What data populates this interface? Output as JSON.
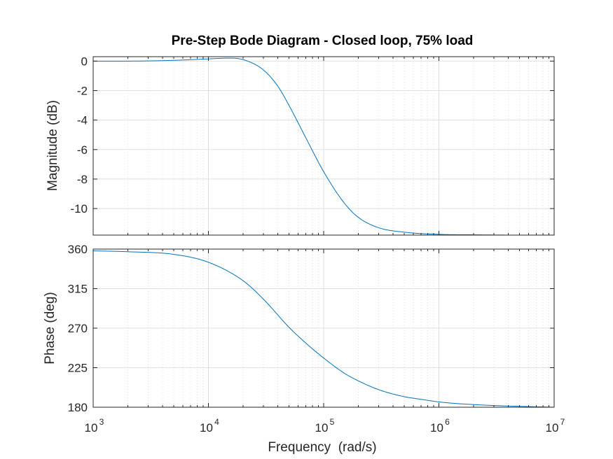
{
  "colors": {
    "line": "#0072BD",
    "grid": "#dfdfdf",
    "axis": "#262626"
  },
  "chart_data": [
    {
      "type": "line",
      "panel": "magnitude",
      "title": "Pre-Step Bode Diagram - Closed loop, 75% load",
      "ylabel": "Magnitude (dB)",
      "xscale": "log",
      "xlim": [
        1000,
        10000000
      ],
      "ylim": [
        -11.8,
        0.3
      ],
      "yticks": [
        0,
        -2,
        -4,
        -6,
        -8,
        -10
      ],
      "ytick_labels": [
        "0",
        "-2",
        "-4",
        "-6",
        "-8",
        "-10"
      ],
      "grid": true,
      "x": [
        1000,
        2000,
        5000,
        10000,
        15000,
        20000,
        30000,
        40000,
        50000,
        70000,
        100000,
        150000,
        200000,
        300000,
        500000,
        1000000,
        2000000,
        5000000,
        10000000
      ],
      "y": [
        0.0,
        0.0,
        0.05,
        0.15,
        0.2,
        0.1,
        -0.6,
        -1.7,
        -3.0,
        -5.2,
        -7.5,
        -9.6,
        -10.6,
        -11.3,
        -11.6,
        -11.75,
        -11.78,
        -11.8,
        -11.8
      ]
    },
    {
      "type": "line",
      "panel": "phase",
      "ylabel": "Phase (deg)",
      "xlabel": "Frequency  (rad/s)",
      "xscale": "log",
      "xlim": [
        1000,
        10000000
      ],
      "ylim": [
        180,
        360
      ],
      "yticks": [
        360,
        315,
        270,
        225,
        180
      ],
      "ytick_labels": [
        "360",
        "315",
        "270",
        "225",
        "180"
      ],
      "xtick_base": [
        "10",
        "10",
        "10",
        "10",
        "10"
      ],
      "xtick_exponents": [
        "3",
        "4",
        "5",
        "6",
        "7"
      ],
      "grid": true,
      "x": [
        1000,
        2000,
        5000,
        10000,
        20000,
        30000,
        50000,
        70000,
        100000,
        150000,
        200000,
        300000,
        500000,
        700000,
        1000000,
        2000000,
        5000000,
        10000000
      ],
      "y": [
        358,
        357,
        354,
        345,
        324,
        303,
        271,
        253,
        236,
        219,
        210,
        200,
        192,
        189,
        186,
        183,
        181,
        180
      ]
    }
  ]
}
